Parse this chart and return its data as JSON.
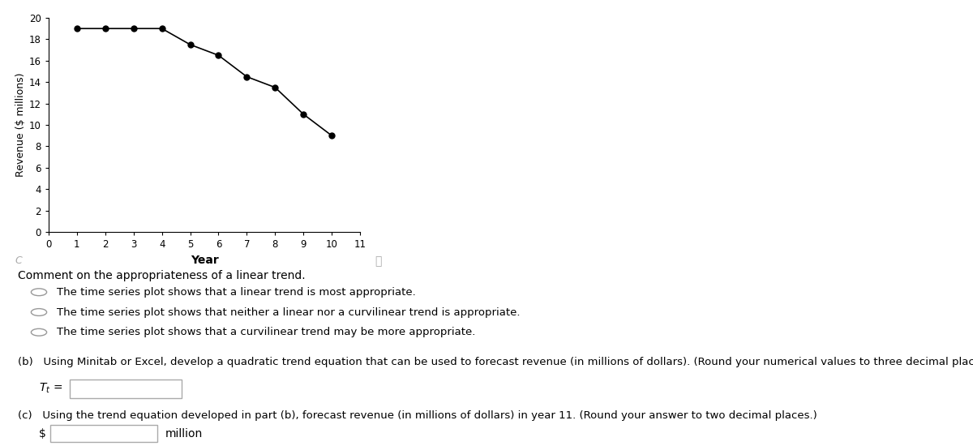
{
  "years": [
    1,
    2,
    3,
    4,
    5,
    6,
    7,
    8,
    9,
    10
  ],
  "revenue": [
    19.0,
    19.0,
    19.0,
    19.0,
    17.5,
    16.5,
    14.5,
    13.5,
    11.0,
    9.0
  ],
  "xlabel": "Year",
  "ylabel": "Revenue ($ millions)",
  "xlim": [
    0,
    11
  ],
  "ylim": [
    0,
    20
  ],
  "xticks": [
    0,
    1,
    2,
    3,
    4,
    5,
    6,
    7,
    8,
    9,
    10,
    11
  ],
  "yticks": [
    0,
    2,
    4,
    6,
    8,
    10,
    12,
    14,
    16,
    18,
    20
  ],
  "line_color": "#000000",
  "marker": "o",
  "marker_size": 5,
  "marker_facecolor": "#000000",
  "line_width": 1.2,
  "comment_text": "Comment on the appropriateness of a linear trend.",
  "radio_options": [
    "The time series plot shows that a linear trend is most appropriate.",
    "The time series plot shows that neither a linear nor a curvilinear trend is appropriate.",
    "The time series plot shows that a curvilinear trend may be more appropriate."
  ],
  "part_b_text": "(b)   Using Minitab or Excel, develop a quadratic trend equation that can be used to forecast revenue (in millions of dollars). (Round your numerical values to three decimal places.)",
  "part_c_text": "(c)   Using the trend equation developed in part (b), forecast revenue (in millions of dollars) in year 11. (Round your answer to two decimal places.)",
  "dollar_label": "$",
  "million_label": "million",
  "bg_color": "#ffffff",
  "text_color": "#000000"
}
